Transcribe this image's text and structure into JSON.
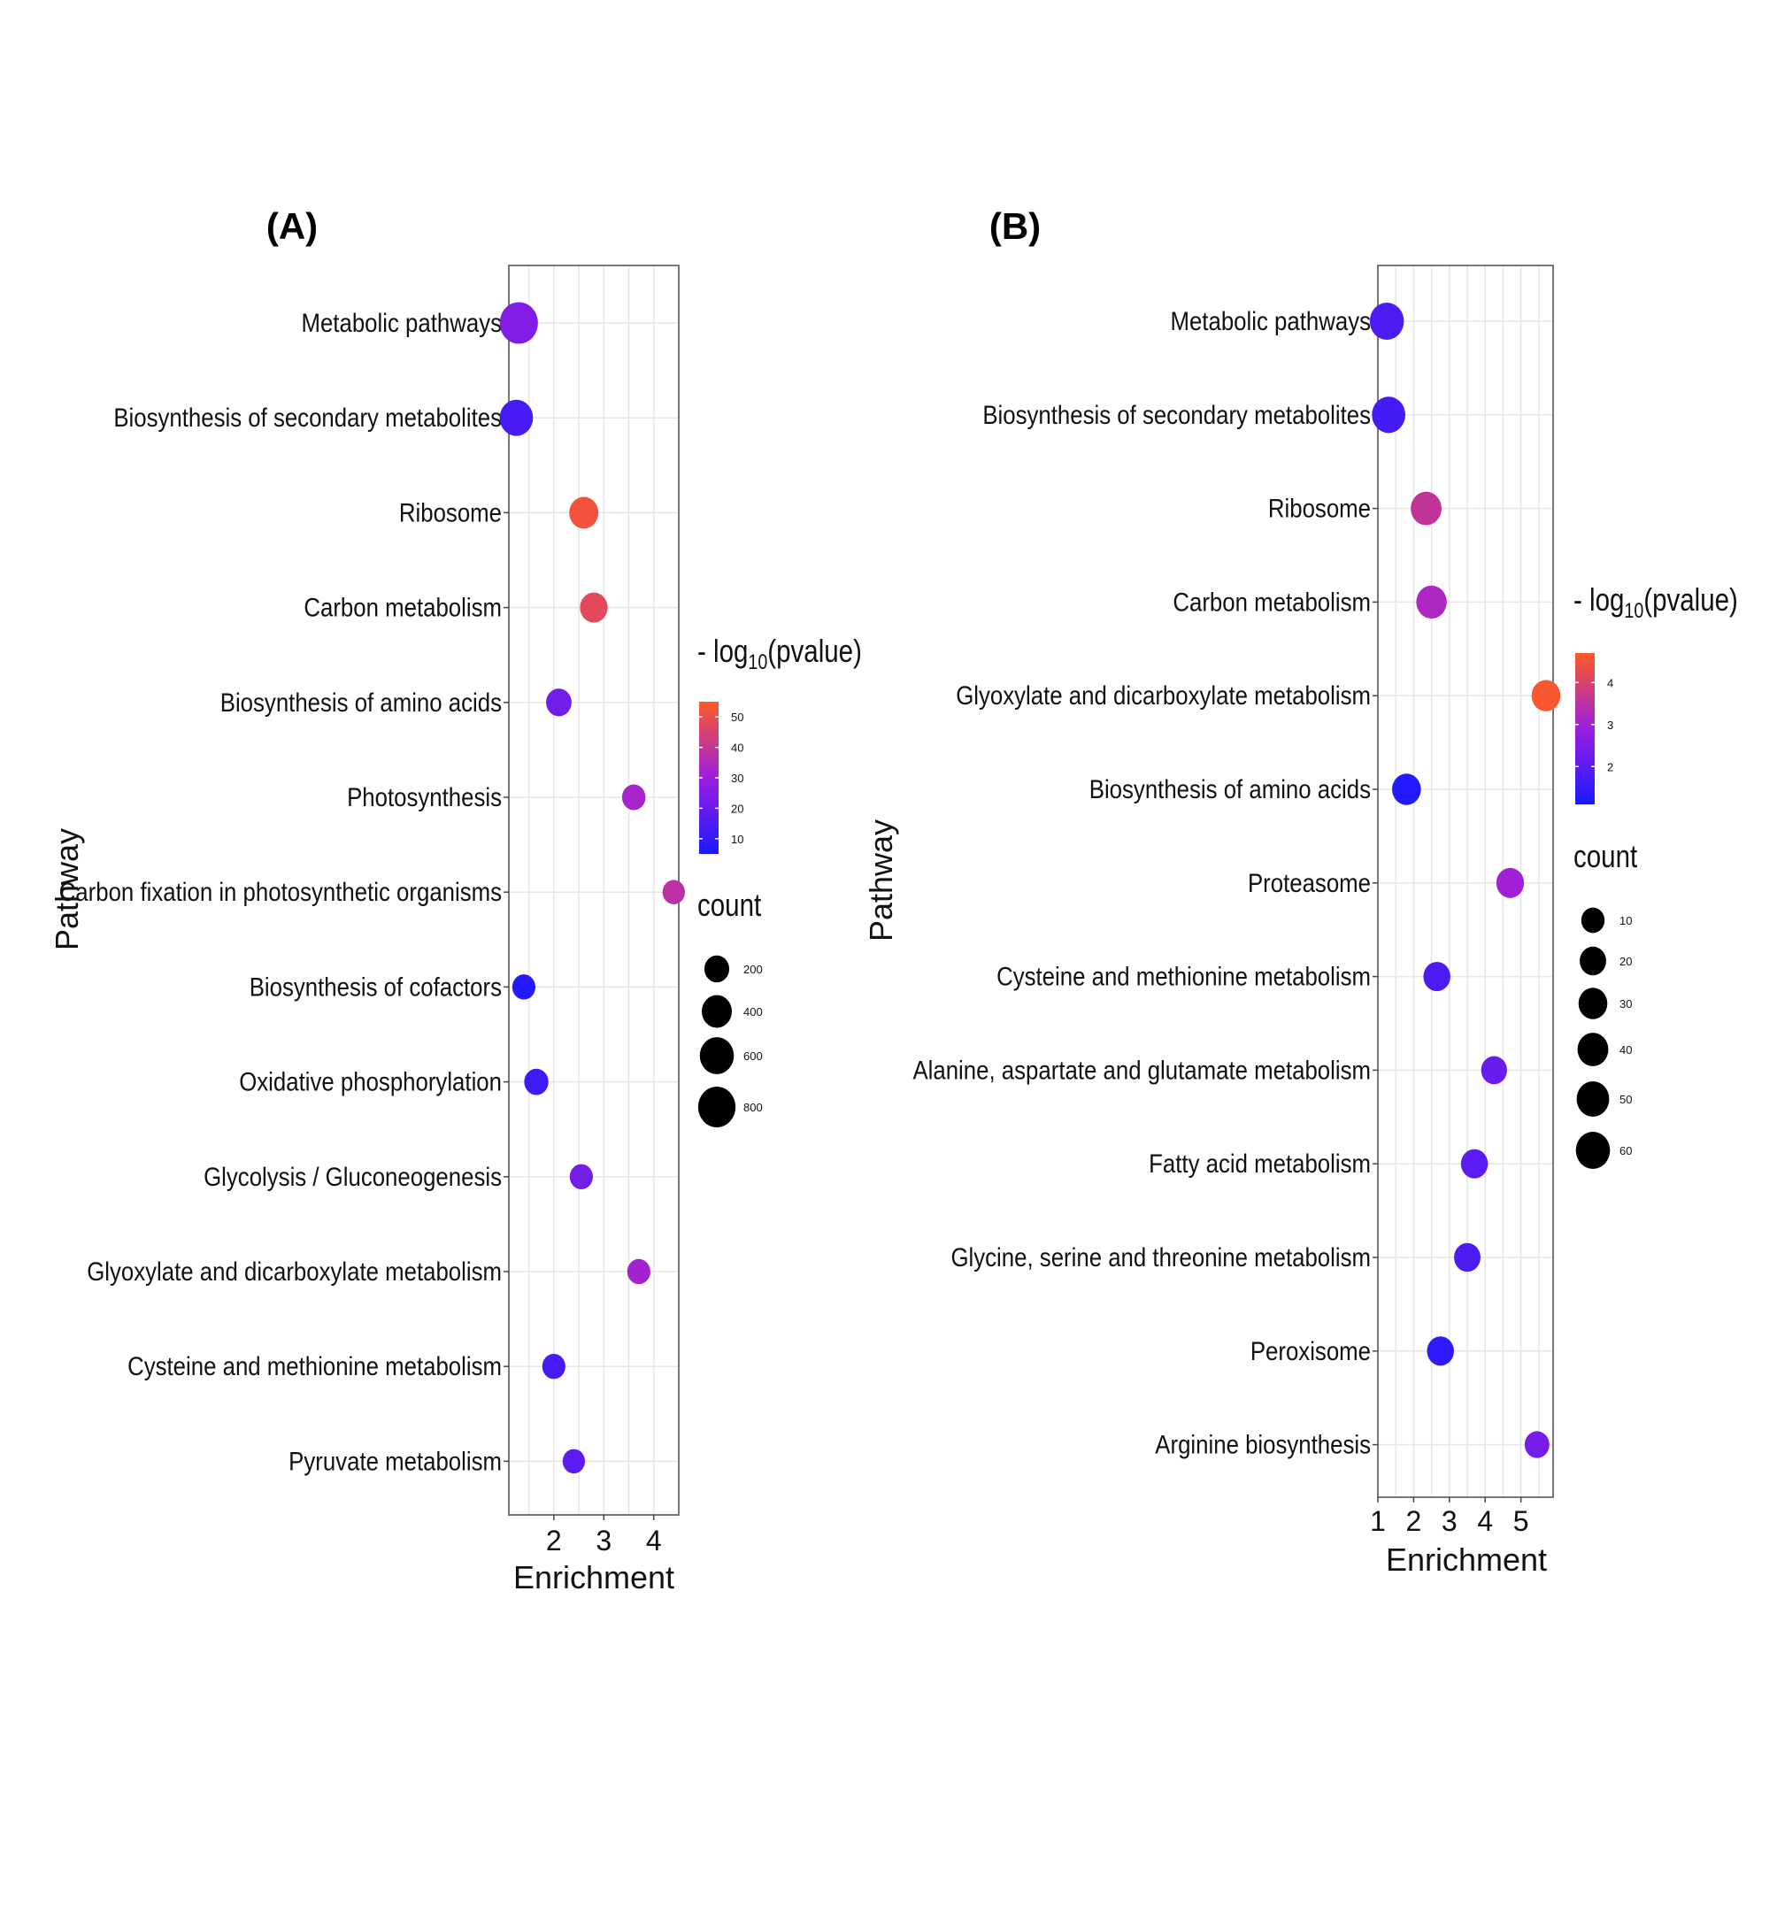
{
  "chart_data": [
    {
      "type": "scatter",
      "panel_label": "(A)",
      "xlabel": "Enrichment",
      "ylabel": "Pathway",
      "xlim": [
        1.1,
        4.5
      ],
      "xticks": [
        2,
        3,
        4
      ],
      "color_legend": {
        "title_prefix": "- log",
        "title_sub": "10",
        "title_suffix": "(pvalue)",
        "range": [
          5,
          55
        ],
        "ticks": [
          10,
          20,
          30,
          40,
          50
        ]
      },
      "size_legend": {
        "title": "count",
        "values": [
          200,
          400,
          600,
          800
        ]
      },
      "categories": [
        "Metabolic pathways",
        "Biosynthesis of secondary metabolites",
        "Ribosome",
        "Carbon metabolism",
        "Biosynthesis of amino acids",
        "Photosynthesis",
        "Carbon fixation in photosynthetic organisms",
        "Biosynthesis of cofactors",
        "Oxidative phosphorylation",
        "Glycolysis / Gluconeogenesis",
        "Glyoxylate and dicarboxylate metabolism",
        "Cysteine and methionine metabolism",
        "Pyruvate metabolism"
      ],
      "points": [
        {
          "enrichment": 1.3,
          "neglog10p": 25,
          "count": 850
        },
        {
          "enrichment": 1.25,
          "neglog10p": 14,
          "count": 560
        },
        {
          "enrichment": 2.6,
          "neglog10p": 52,
          "count": 360
        },
        {
          "enrichment": 2.8,
          "neglog10p": 48,
          "count": 300
        },
        {
          "enrichment": 2.1,
          "neglog10p": 22,
          "count": 220
        },
        {
          "enrichment": 3.6,
          "neglog10p": 33,
          "count": 160
        },
        {
          "enrichment": 4.4,
          "neglog10p": 38,
          "count": 130
        },
        {
          "enrichment": 1.4,
          "neglog10p": 7,
          "count": 150
        },
        {
          "enrichment": 1.65,
          "neglog10p": 12,
          "count": 180
        },
        {
          "enrichment": 2.55,
          "neglog10p": 22,
          "count": 150
        },
        {
          "enrichment": 3.7,
          "neglog10p": 32,
          "count": 150
        },
        {
          "enrichment": 2.0,
          "neglog10p": 14,
          "count": 150
        },
        {
          "enrichment": 2.4,
          "neglog10p": 18,
          "count": 130
        }
      ]
    },
    {
      "type": "scatter",
      "panel_label": "(B)",
      "xlabel": "Enrichment",
      "ylabel": "Pathway",
      "xlim": [
        1.0,
        5.9
      ],
      "xticks": [
        1,
        2,
        3,
        4,
        5
      ],
      "color_legend": {
        "title_prefix": "- log",
        "title_sub": "10",
        "title_suffix": "(pvalue)",
        "range": [
          1.1,
          4.7
        ],
        "ticks": [
          2,
          3,
          4
        ]
      },
      "size_legend": {
        "title": "count",
        "values": [
          10,
          20,
          30,
          40,
          50,
          60
        ]
      },
      "categories": [
        "Metabolic pathways",
        "Biosynthesis of secondary metabolites",
        "Ribosome",
        "Carbon metabolism",
        "Glyoxylate and dicarboxylate metabolism",
        "Biosynthesis of amino acids",
        "Proteasome",
        "Cysteine and methionine metabolism",
        "Alanine, aspartate and glutamate metabolism",
        "Fatty acid metabolism",
        "Glycine, serine and threonine metabolism",
        "Peroxisome",
        "Arginine biosynthesis"
      ],
      "points": [
        {
          "enrichment": 1.25,
          "neglog10p": 1.8,
          "count": 60
        },
        {
          "enrichment": 1.3,
          "neglog10p": 1.7,
          "count": 55
        },
        {
          "enrichment": 2.35,
          "neglog10p": 3.6,
          "count": 40
        },
        {
          "enrichment": 2.5,
          "neglog10p": 3.2,
          "count": 38
        },
        {
          "enrichment": 5.7,
          "neglog10p": 4.6,
          "count": 30
        },
        {
          "enrichment": 1.8,
          "neglog10p": 1.2,
          "count": 30
        },
        {
          "enrichment": 4.7,
          "neglog10p": 3.0,
          "count": 25
        },
        {
          "enrichment": 2.65,
          "neglog10p": 1.8,
          "count": 22
        },
        {
          "enrichment": 4.25,
          "neglog10p": 2.2,
          "count": 18
        },
        {
          "enrichment": 3.7,
          "neglog10p": 2.0,
          "count": 22
        },
        {
          "enrichment": 3.5,
          "neglog10p": 1.8,
          "count": 20
        },
        {
          "enrichment": 2.75,
          "neglog10p": 1.4,
          "count": 22
        },
        {
          "enrichment": 5.45,
          "neglog10p": 2.4,
          "count": 14
        }
      ]
    }
  ],
  "colors": {
    "low": "#1a1aff",
    "mid": "#9b1ee0",
    "high": "#ff5a26",
    "point_legend": "#000000"
  }
}
